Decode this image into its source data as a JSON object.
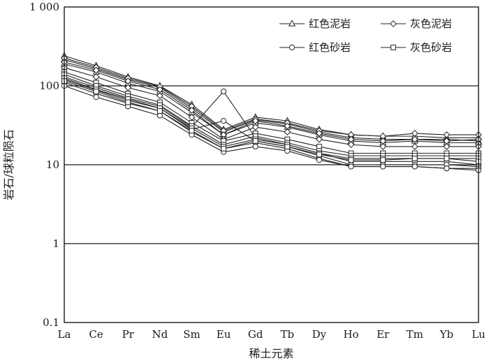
{
  "chart_data": {
    "type": "line",
    "ylabel": "岩石/球粒陨石",
    "xlabel": "稀土元素",
    "y_scale": "log",
    "ylim": [
      0.1,
      1000
    ],
    "yticks": [
      0.1,
      1,
      10,
      100,
      1000
    ],
    "ytick_labels": [
      "0.1",
      "1",
      "10",
      "100",
      "1 000"
    ],
    "grid": "horizontal",
    "legend_position": "top-right",
    "categories": [
      "La",
      "Ce",
      "Pr",
      "Nd",
      "Sm",
      "Eu",
      "Gd",
      "Tb",
      "Dy",
      "Ho",
      "Er",
      "Tm",
      "Yb",
      "Lu"
    ],
    "legend": [
      {
        "label": "红色泥岩",
        "marker": "triangle"
      },
      {
        "label": "灰色泥岩",
        "marker": "diamond"
      },
      {
        "label": "红色砂岩",
        "marker": "circle"
      },
      {
        "label": "灰色砂岩",
        "marker": "square"
      }
    ],
    "series": [
      {
        "marker": "triangle",
        "values": [
          240,
          180,
          130,
          100,
          58,
          28,
          40,
          36,
          28,
          24,
          23,
          23,
          22,
          22
        ]
      },
      {
        "marker": "triangle",
        "values": [
          215,
          165,
          120,
          95,
          52,
          26,
          37,
          33,
          26,
          22,
          21,
          21,
          21,
          20
        ]
      },
      {
        "marker": "triangle",
        "values": [
          190,
          150,
          108,
          85,
          46,
          24,
          34,
          30,
          24,
          20,
          19,
          20,
          19,
          19
        ]
      },
      {
        "marker": "diamond",
        "values": [
          225,
          172,
          125,
          98,
          55,
          27,
          38,
          34,
          27,
          24,
          23,
          25,
          24,
          24
        ]
      },
      {
        "marker": "diamond",
        "values": [
          200,
          158,
          115,
          90,
          49,
          24,
          36,
          31,
          25,
          21,
          20,
          21,
          20,
          21
        ]
      },
      {
        "marker": "diamond",
        "values": [
          170,
          130,
          95,
          75,
          40,
          21,
          30,
          26,
          21,
          18,
          17,
          17,
          17,
          17
        ]
      },
      {
        "marker": "circle",
        "values": [
          130,
          95,
          70,
          55,
          30,
          85,
          22,
          18,
          14,
          11,
          11,
          11,
          11,
          10
        ]
      },
      {
        "marker": "circle",
        "values": [
          120,
          88,
          65,
          52,
          28,
          36,
          20,
          17,
          13,
          10,
          10,
          10,
          10,
          9.5
        ]
      },
      {
        "marker": "circle",
        "values": [
          110,
          80,
          60,
          48,
          26,
          16,
          19,
          16,
          12,
          9.5,
          9.5,
          9.5,
          9,
          9
        ]
      },
      {
        "marker": "circle",
        "values": [
          100,
          72,
          55,
          42,
          24,
          14.5,
          17,
          15,
          11.5,
          9.5,
          9.5,
          9.5,
          9,
          8.5
        ]
      },
      {
        "marker": "square",
        "values": [
          150,
          110,
          80,
          62,
          34,
          20,
          25,
          21,
          17,
          14,
          14,
          14,
          14,
          14
        ]
      },
      {
        "marker": "square",
        "values": [
          140,
          100,
          74,
          57,
          31,
          18,
          23,
          19,
          15,
          13,
          13,
          13,
          13,
          13
        ]
      },
      {
        "marker": "square",
        "values": [
          125,
          90,
          68,
          52,
          29,
          17,
          21,
          18,
          14,
          12,
          12,
          12,
          12,
          12
        ]
      },
      {
        "marker": "square",
        "values": [
          115,
          85,
          62,
          48,
          27,
          16,
          20,
          17,
          13.5,
          11.5,
          11.5,
          12,
          12,
          11
        ]
      }
    ]
  }
}
